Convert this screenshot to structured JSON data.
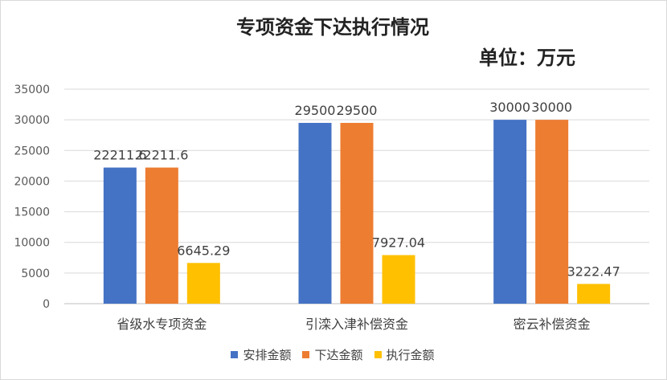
{
  "chart_data": {
    "type": "bar",
    "title": "专项资金下达执行情况",
    "subtitle": "单位：万元",
    "categories": [
      "省级水专项资金",
      "引滦入津补偿资金",
      "密云补偿资金"
    ],
    "series": [
      {
        "name": "安排金额",
        "color": "#4472C4",
        "values": [
          22211.6,
          29500,
          30000
        ],
        "labels": [
          "22211.6",
          "29500",
          "30000"
        ]
      },
      {
        "name": "下达金额",
        "color": "#ED7D31",
        "values": [
          22211.6,
          29500,
          30000
        ],
        "labels": [
          "22211.6",
          "29500",
          "30000"
        ]
      },
      {
        "name": "执行金额",
        "color": "#FFC000",
        "values": [
          6645.29,
          7927.04,
          3222.47
        ],
        "labels": [
          "6645.29",
          "7927.04",
          "3222.47"
        ]
      }
    ],
    "ylim": [
      0,
      35000
    ],
    "yticks": [
      "0",
      "5000",
      "10000",
      "15000",
      "20000",
      "25000",
      "30000",
      "35000"
    ],
    "grid": true,
    "legend": "bottom"
  }
}
